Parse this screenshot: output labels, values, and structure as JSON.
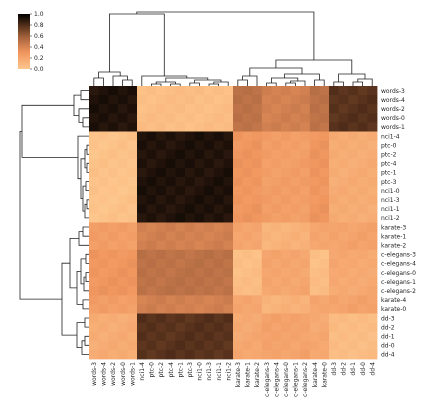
{
  "chart_data": {
    "type": "heatmap",
    "title": "",
    "xlabel": "",
    "ylabel": "",
    "colorbar": {
      "ticks": [
        "0.0",
        "0.2",
        "0.4",
        "0.6",
        "0.8",
        "1.0"
      ],
      "vmin": 0.0,
      "vmax": 1.0,
      "low_color": "#fdb173",
      "high_color": "#000000"
    },
    "column_labels": [
      "words-3",
      "words-4",
      "words-2",
      "words-0",
      "words-1",
      "nci1-4",
      "ptc-0",
      "ptc-2",
      "ptc-4",
      "ptc-1",
      "ptc-3",
      "nci1-0",
      "nci1-3",
      "nci1-1",
      "nci1-2",
      "karate-3",
      "karate-1",
      "karate-2",
      "c-elegans-3",
      "c-elegans-4",
      "c-elegans-0",
      "c-elegans-1",
      "c-elegans-2",
      "karate-4",
      "karate-0",
      "dd-3",
      "dd-2",
      "dd-1",
      "dd-0",
      "dd-4"
    ],
    "row_labels": [
      "words-3",
      "words-4",
      "words-2",
      "words-0",
      "words-1",
      "nci1-4",
      "ptc-0",
      "ptc-2",
      "ptc-4",
      "ptc-1",
      "ptc-3",
      "nci1-0",
      "nci1-3",
      "nci1-1",
      "nci1-2",
      "karate-3",
      "karate-1",
      "karate-2",
      "c-elegans-3",
      "c-elegans-4",
      "c-elegans-0",
      "c-elegans-1",
      "c-elegans-2",
      "karate-4",
      "karate-0",
      "dd-3",
      "dd-2",
      "dd-1",
      "dd-0",
      "dd-4"
    ],
    "row_groups": [
      0,
      0,
      0,
      0,
      0,
      1,
      1,
      1,
      1,
      1,
      1,
      1,
      1,
      1,
      1,
      2,
      2,
      2,
      3,
      3,
      3,
      3,
      3,
      2,
      2,
      4,
      4,
      4,
      4,
      4
    ],
    "col_group_order": [
      1,
      0,
      3,
      2,
      4
    ],
    "group_similarity": [
      [
        0.05,
        0.92,
        0.42,
        0.5,
        0.78
      ],
      [
        0.92,
        0.02,
        0.25,
        0.3,
        0.16
      ],
      [
        0.42,
        0.25,
        0.12,
        0.2,
        0.22
      ],
      [
        0.5,
        0.3,
        0.2,
        0.05,
        0.18
      ],
      [
        0.78,
        0.16,
        0.22,
        0.18,
        0.06
      ]
    ]
  }
}
